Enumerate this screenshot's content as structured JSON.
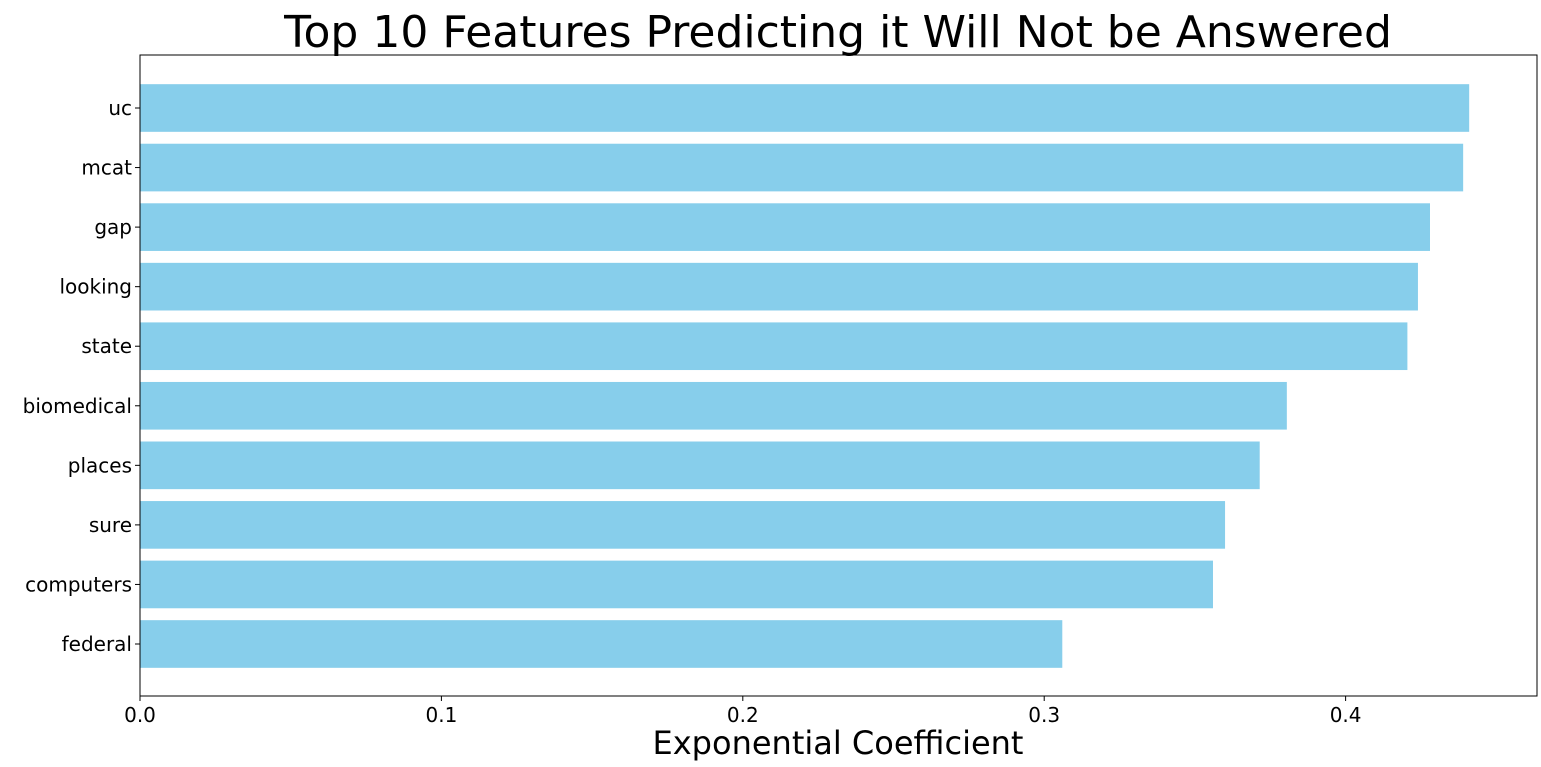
{
  "chart_data": {
    "type": "bar",
    "orientation": "horizontal",
    "title": "Top 10 Features Predicting it Will Not be Answered",
    "xlabel": "Exponential Coefficient",
    "ylabel": "",
    "categories": [
      "uc",
      "mcat",
      "gap",
      "looking",
      "state",
      "biomedical",
      "places",
      "sure",
      "computers",
      "federal"
    ],
    "values": [
      0.441,
      0.439,
      0.428,
      0.424,
      0.4205,
      0.3805,
      0.3715,
      0.36,
      0.356,
      0.306
    ],
    "xlim": [
      0.0,
      0.4635
    ],
    "xticks": [
      "0.0",
      "0.1",
      "0.2",
      "0.3",
      "0.4"
    ],
    "bar_color": "#87CEEB",
    "grid": false,
    "legend": "none"
  }
}
